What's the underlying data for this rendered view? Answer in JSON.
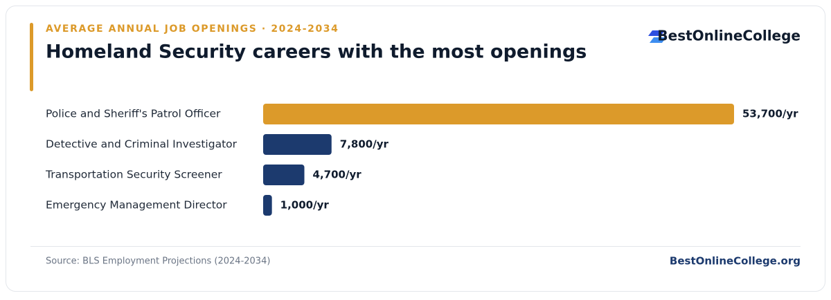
{
  "header": {
    "brand": "BestOnlineCollege"
  },
  "chart_data": {
    "type": "bar",
    "orientation": "horizontal",
    "subtitle": "AVERAGE ANNUAL JOB OPENINGS · 2024-2034",
    "title": "Homeland Security careers with the most openings",
    "categories": [
      "Police and Sheriff's Patrol Officer",
      "Detective and Criminal Investigator",
      "Transportation Security Screener",
      "Emergency Management Director"
    ],
    "values": [
      53700,
      7800,
      4700,
      1000
    ],
    "value_labels": [
      "53,700/yr",
      "7,800/yr",
      "4,700/yr",
      "1,000/yr"
    ],
    "colors": [
      "#dc9a2a",
      "#1c3a6e",
      "#1c3a6e",
      "#1c3a6e"
    ]
  },
  "footer": {
    "source": "Source: BLS Employment Projections (2024-2034)",
    "site": "BestOnlineCollege.org"
  }
}
